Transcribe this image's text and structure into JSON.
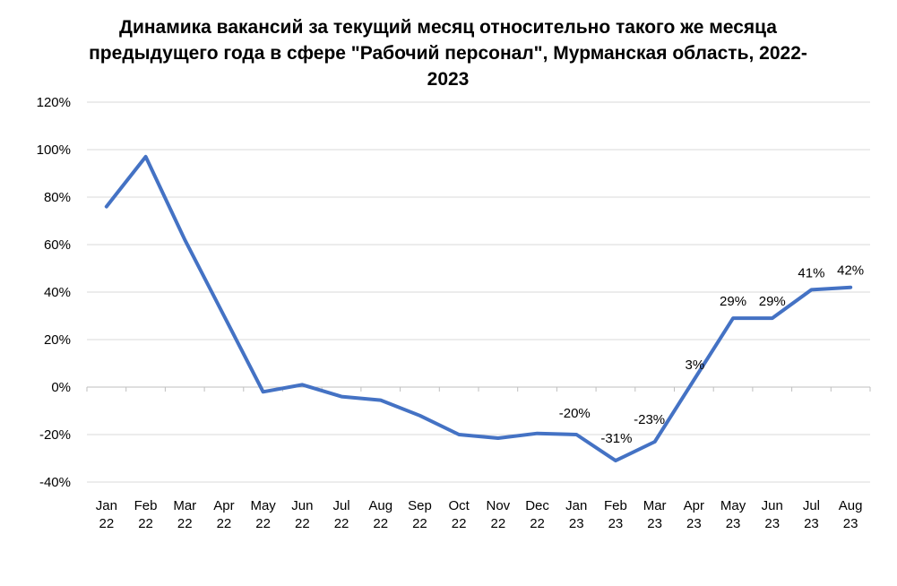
{
  "chart_data": {
    "type": "line",
    "title": "Динамика вакансий за текущий месяц относительно такого же месяца предыдущего года в сфере \"Рабочий персонал\", Мурманская область, 2022-2023",
    "xlabel": "",
    "ylabel": "",
    "ylim": [
      -40,
      120
    ],
    "y_ticks": [
      "120%",
      "100%",
      "80%",
      "60%",
      "40%",
      "20%",
      "0%",
      "-20%",
      "-40%"
    ],
    "y_tick_values": [
      120,
      100,
      80,
      60,
      40,
      20,
      0,
      -20,
      -40
    ],
    "grid": true,
    "legend": "none",
    "categories": [
      [
        "Jan",
        "22"
      ],
      [
        "Feb",
        "22"
      ],
      [
        "Mar",
        "22"
      ],
      [
        "Apr",
        "22"
      ],
      [
        "May",
        "22"
      ],
      [
        "Jun",
        "22"
      ],
      [
        "Jul",
        "22"
      ],
      [
        "Aug",
        "22"
      ],
      [
        "Sep",
        "22"
      ],
      [
        "Oct",
        "22"
      ],
      [
        "Nov",
        "22"
      ],
      [
        "Dec",
        "22"
      ],
      [
        "Jan",
        "23"
      ],
      [
        "Feb",
        "23"
      ],
      [
        "Mar",
        "23"
      ],
      [
        "Apr",
        "23"
      ],
      [
        "May",
        "23"
      ],
      [
        "Jun",
        "23"
      ],
      [
        "Jul",
        "23"
      ],
      [
        "Aug",
        "23"
      ]
    ],
    "series": [
      {
        "values": [
          76,
          97,
          62,
          30,
          -2,
          1,
          -4,
          -5.5,
          -12,
          -20,
          -21.5,
          -19.5,
          -20,
          -31,
          -23,
          3,
          29,
          29,
          41,
          42
        ],
        "data_labels": [
          "",
          "",
          "",
          "",
          "",
          "",
          "",
          "",
          "",
          "",
          "",
          "",
          "-20%",
          "-31%",
          "-23%",
          "3%",
          "29%",
          "29%",
          "41%",
          "42%"
        ],
        "color": "#4472C4"
      }
    ]
  }
}
